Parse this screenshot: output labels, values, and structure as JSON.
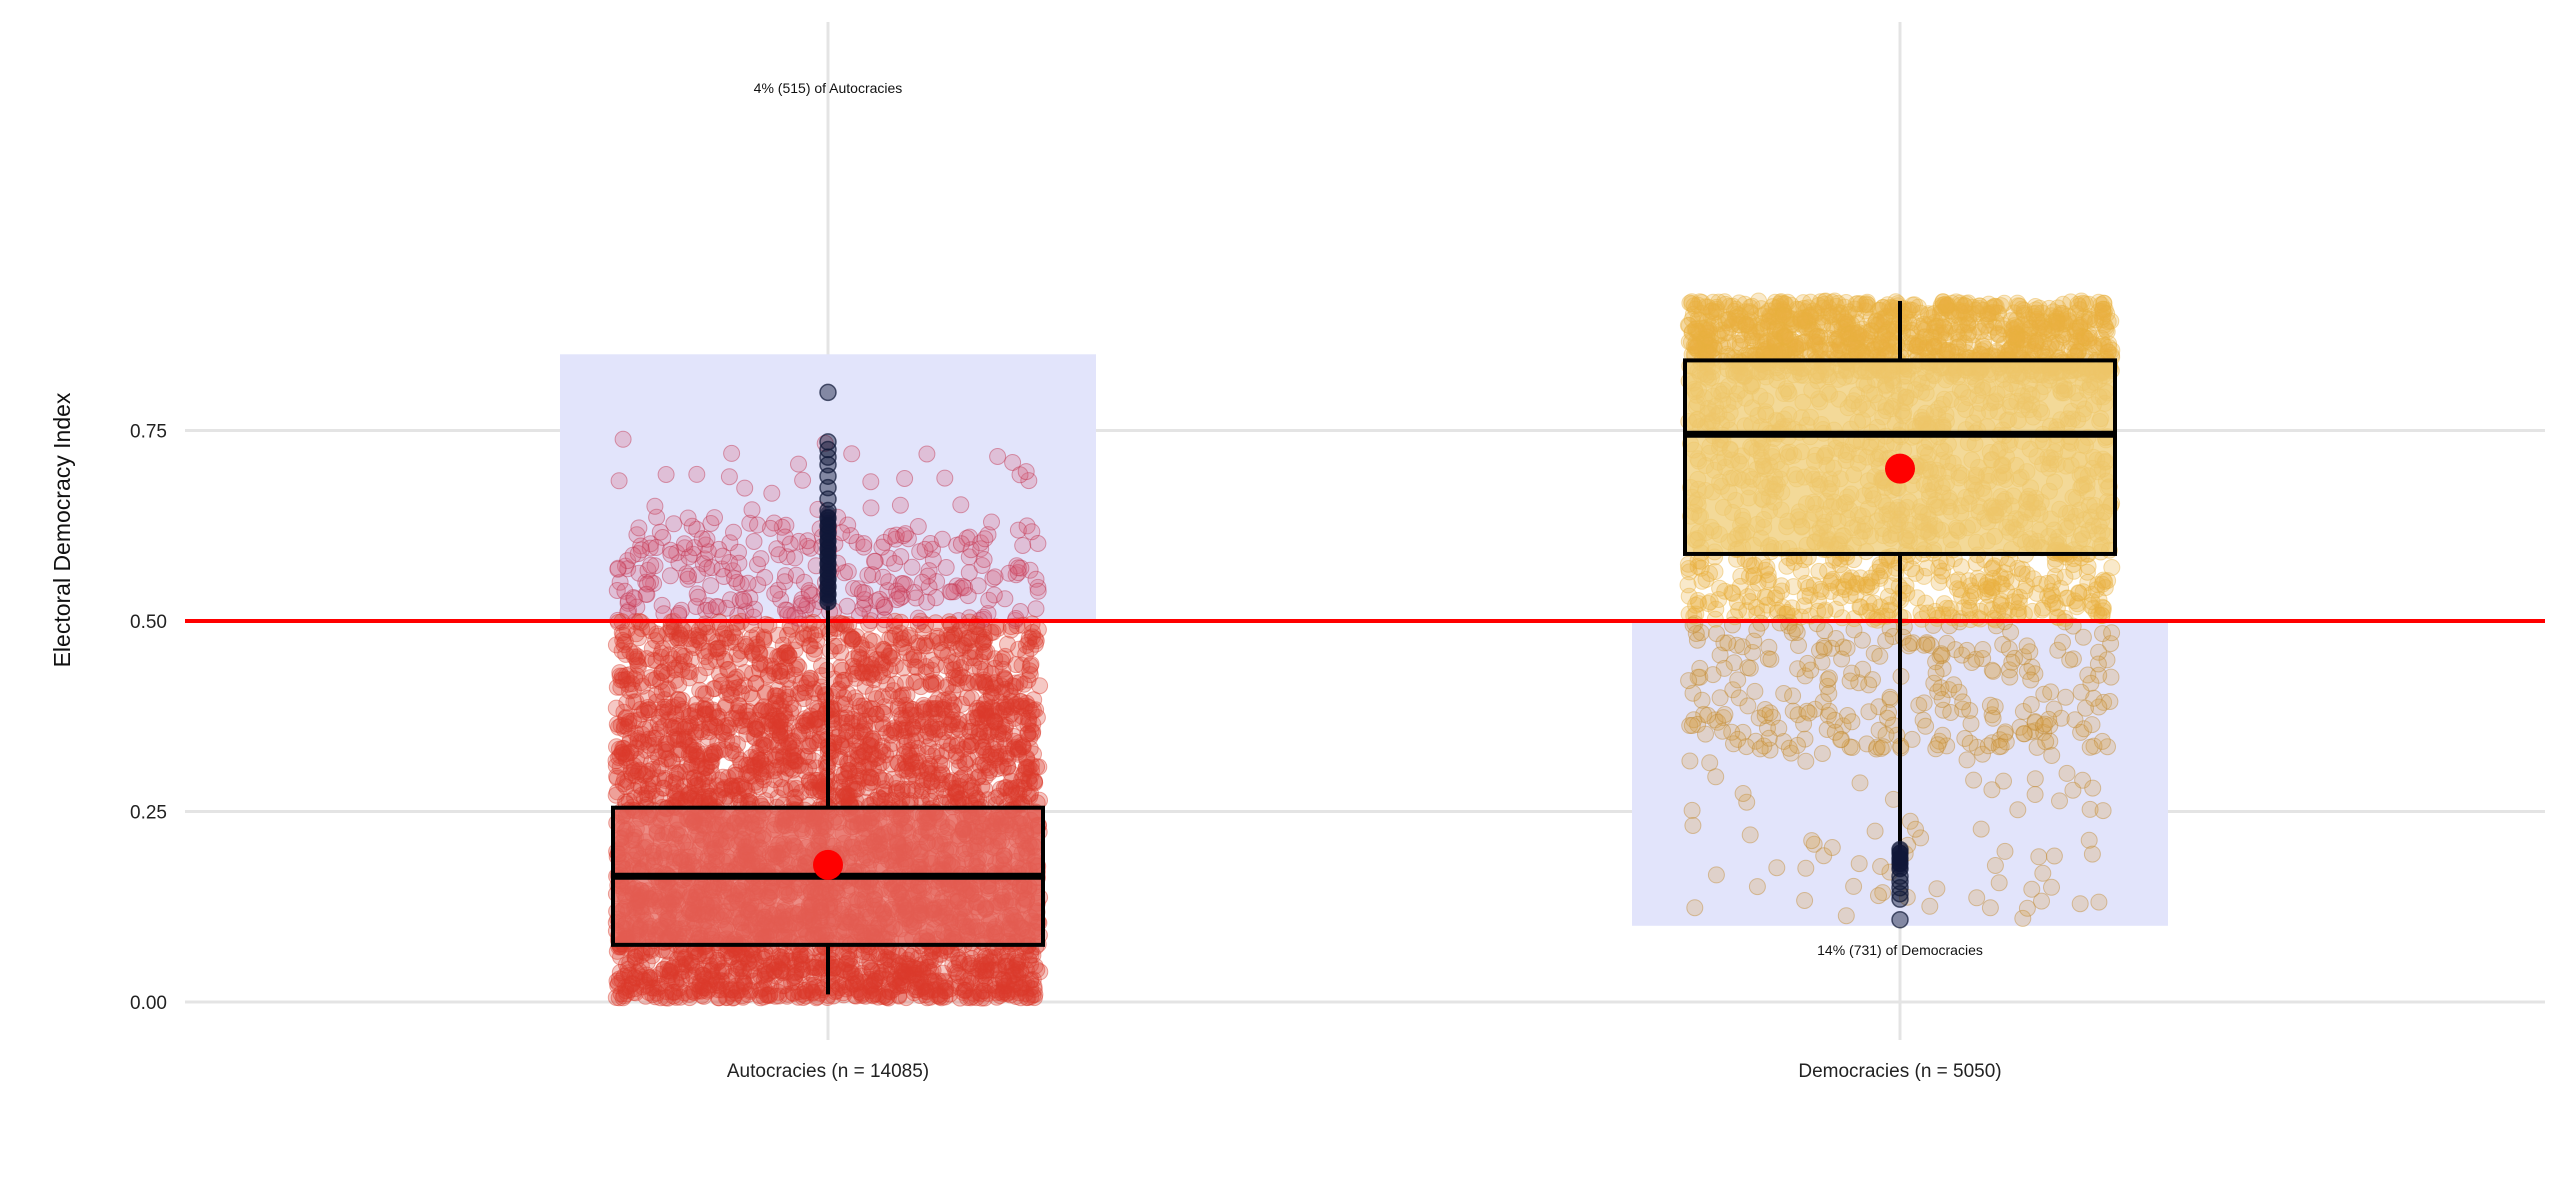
{
  "chart_data": {
    "type": "box",
    "ylabel": "Electoral Democracy Index",
    "xlabel": "",
    "ylim": [
      -0.04,
      0.97
    ],
    "yticks": [
      0.0,
      0.25,
      0.5,
      0.75
    ],
    "ytick_labels": [
      "0.00",
      "0.25",
      "0.50",
      "0.75"
    ],
    "grid": true,
    "threshold": {
      "value": 0.5,
      "color": "#ff0000"
    },
    "groups": [
      {
        "label": "Autocracies (n = 14085)",
        "n": 14085,
        "color": "#dc3b2c",
        "box_fill": "#e5675e",
        "outlier_color": "#101838",
        "box": {
          "min": 0.01,
          "q1": 0.075,
          "median": 0.165,
          "q3": 0.255,
          "whisker_high": 0.52
        },
        "mean": 0.18,
        "misclassified_region": {
          "y0": 0.5,
          "y1": 0.85
        },
        "annotation": "4% (515) of Autocracies",
        "outliers": [
          0.525,
          0.535,
          0.545,
          0.555,
          0.565,
          0.575,
          0.585,
          0.595,
          0.605,
          0.615,
          0.625,
          0.635,
          0.645,
          0.66,
          0.675,
          0.69,
          0.705,
          0.715,
          0.725,
          0.735,
          0.8
        ]
      },
      {
        "label": "Democracies (n = 5050)",
        "n": 5050,
        "color": "#e8b13f",
        "box_fill": "#efcc75",
        "outlier_color": "#101838",
        "box": {
          "whisker_low": 0.18,
          "q1": 0.588,
          "median": 0.745,
          "q3": 0.842,
          "max": 0.92
        },
        "mean": 0.7,
        "misclassified_region": {
          "y0": 0.1,
          "y1": 0.5
        },
        "annotation": "14% (731) of Democracies",
        "outliers": [
          0.108,
          0.135,
          0.142,
          0.15,
          0.158,
          0.165,
          0.175,
          0.182,
          0.188,
          0.195,
          0.2
        ]
      }
    ]
  }
}
